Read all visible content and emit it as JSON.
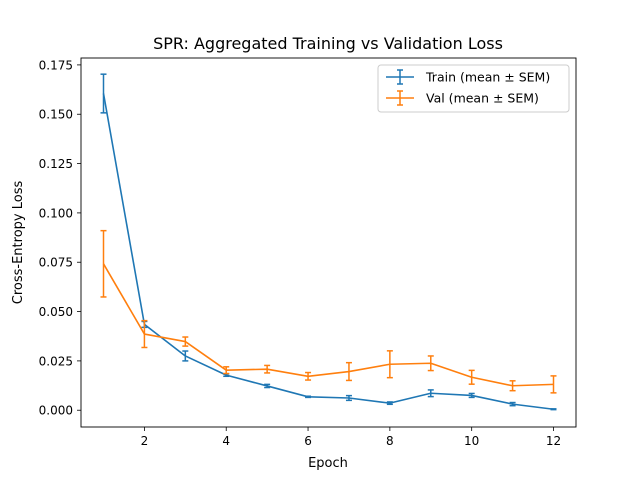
{
  "chart_data": {
    "type": "line",
    "title": "SPR: Aggregated Training vs Validation Loss",
    "xlabel": "Epoch",
    "ylabel": "Cross-Entropy Loss",
    "xlim": [
      0.45,
      12.55
    ],
    "ylim": [
      -0.0085,
      0.1785
    ],
    "xticks": [
      2,
      4,
      6,
      8,
      10,
      12
    ],
    "yticks": [
      0.0,
      0.025,
      0.05,
      0.075,
      0.1,
      0.125,
      0.15,
      0.175
    ],
    "ytick_labels": [
      "0.000",
      "0.025",
      "0.050",
      "0.075",
      "0.100",
      "0.125",
      "0.150",
      "0.175"
    ],
    "grid": false,
    "legend_position": "top-right",
    "x": [
      1,
      2,
      3,
      4,
      5,
      6,
      7,
      8,
      9,
      10,
      11,
      12
    ],
    "series": [
      {
        "name": "Train (mean ± SEM)",
        "color": "#1f77b4",
        "values": [
          0.1605,
          0.0435,
          0.0275,
          0.0178,
          0.0123,
          0.0068,
          0.0062,
          0.0036,
          0.0086,
          0.0075,
          0.0031,
          0.0005
        ],
        "sem": [
          0.0098,
          0.0015,
          0.0025,
          0.0006,
          0.0008,
          0.0003,
          0.0012,
          0.0006,
          0.0017,
          0.001,
          0.0008,
          0.0002
        ]
      },
      {
        "name": "Val (mean ± SEM)",
        "color": "#ff7f0e",
        "values": [
          0.0742,
          0.0386,
          0.0348,
          0.0203,
          0.0208,
          0.0172,
          0.0196,
          0.0233,
          0.0238,
          0.0167,
          0.0124,
          0.0131
        ],
        "sem": [
          0.0168,
          0.0068,
          0.0023,
          0.0017,
          0.0019,
          0.0019,
          0.0045,
          0.0068,
          0.0037,
          0.0035,
          0.0025,
          0.0043
        ]
      }
    ]
  }
}
